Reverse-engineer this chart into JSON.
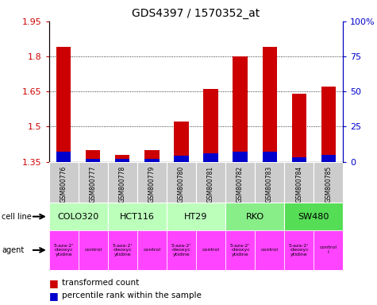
{
  "title": "GDS4397 / 1570352_at",
  "samples": [
    "GSM800776",
    "GSM800777",
    "GSM800778",
    "GSM800779",
    "GSM800780",
    "GSM800781",
    "GSM800782",
    "GSM800783",
    "GSM800784",
    "GSM800785"
  ],
  "red_values": [
    1.84,
    1.4,
    1.38,
    1.4,
    1.52,
    1.66,
    1.8,
    1.84,
    1.64,
    1.67
  ],
  "blue_values": [
    0.07,
    0.02,
    0.02,
    0.02,
    0.04,
    0.06,
    0.07,
    0.07,
    0.03,
    0.05
  ],
  "ymin": 1.35,
  "ymax": 1.95,
  "y_ticks": [
    1.35,
    1.5,
    1.65,
    1.8,
    1.95
  ],
  "y2_ticks": [
    0,
    25,
    50,
    75,
    100
  ],
  "y2_labels": [
    "0",
    "25",
    "50",
    "75",
    "100%"
  ],
  "cell_line_spans": [
    {
      "label": "COLO320",
      "start": 0,
      "end": 2
    },
    {
      "label": "HCT116",
      "start": 2,
      "end": 4
    },
    {
      "label": "HT29",
      "start": 4,
      "end": 6
    },
    {
      "label": "RKO",
      "start": 6,
      "end": 8
    },
    {
      "label": "SW480",
      "start": 8,
      "end": 10
    }
  ],
  "cell_line_colors": [
    "#bbffbb",
    "#bbffbb",
    "#bbffbb",
    "#88ee88",
    "#55dd55"
  ],
  "agent_labels": [
    "5-aza-2'\n-deoxyc\nytidine",
    "control",
    "5-aza-2'\n-deoxyc\nytidine",
    "control",
    "5-aza-2'\n-deoxyc\nytidine",
    "control",
    "5-aza-2'\n-deoxyc\nytidine",
    "control",
    "5-aza-2'\n-deoxyc\nytidine",
    "control\nl"
  ],
  "agent_color": "#ff44ff",
  "grid_lines": [
    1.5,
    1.65,
    1.8
  ],
  "bar_width": 0.35,
  "red_color": "#cc0000",
  "blue_color": "#0000cc",
  "sample_bg": "#cccccc",
  "legend_red": "transformed count",
  "legend_blue": "percentile rank within the sample"
}
